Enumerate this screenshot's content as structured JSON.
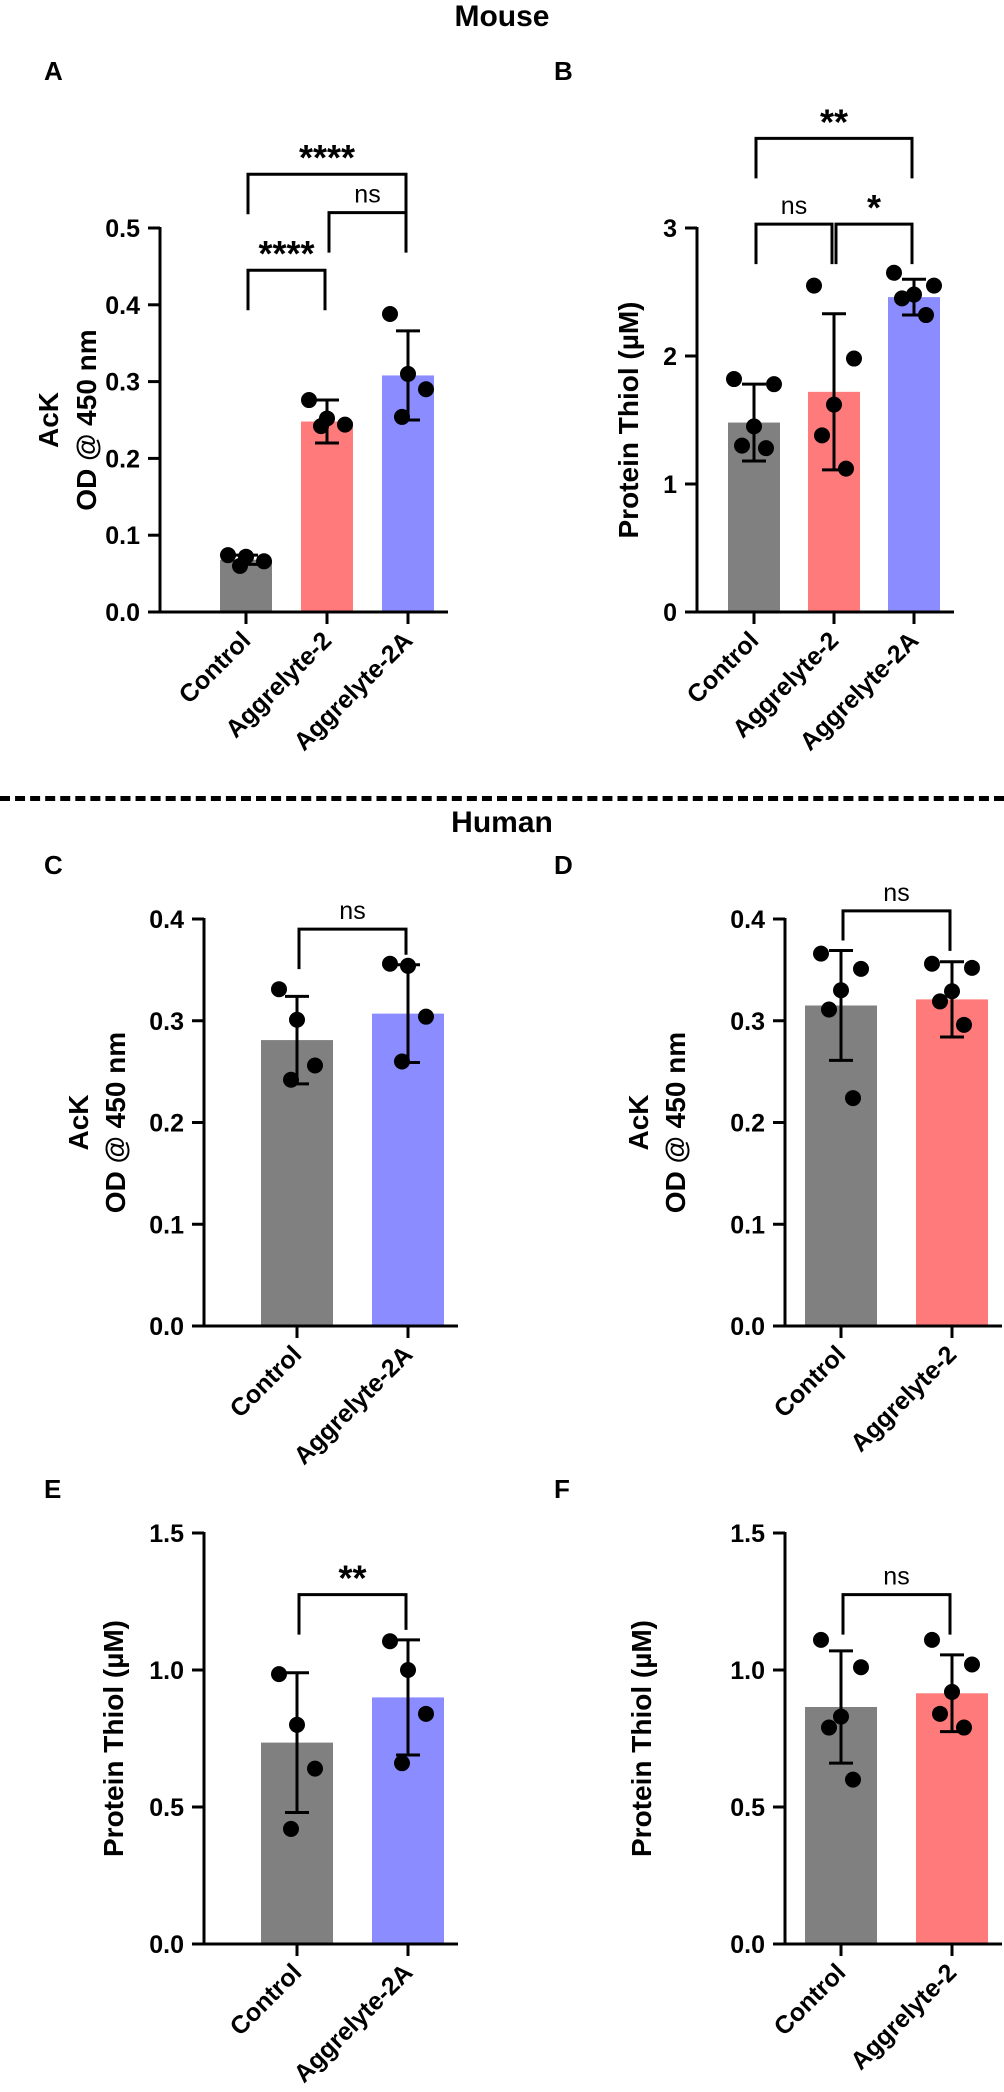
{
  "figure": {
    "sections": [
      {
        "id": "mouse",
        "title": "Mouse"
      },
      {
        "id": "human",
        "title": "Human"
      }
    ]
  },
  "colors": {
    "Control": "#808080",
    "Aggrelyte-2": "#FF7B7B",
    "Aggrelyte-2A": "#8A8CFF",
    "points": "#000000"
  },
  "chart_data": [
    {
      "panel": "A",
      "type": "bar",
      "ylabel": [
        "AcK",
        "OD @ 450 nm"
      ],
      "ylim": [
        0,
        0.5
      ],
      "yticks": [
        0.0,
        0.1,
        0.2,
        0.3,
        0.4,
        0.5
      ],
      "tick_labels": [
        "0.0",
        "0.1",
        "0.2",
        "0.3",
        "0.4",
        "0.5"
      ],
      "categories": [
        "Control",
        "Aggrelyte-2",
        "Aggrelyte-2A"
      ],
      "values": [
        0.068,
        0.248,
        0.308
      ],
      "sd": [
        0.006,
        0.028,
        0.058
      ],
      "points": [
        [
          0.074,
          0.072,
          0.066,
          0.06
        ],
        [
          0.276,
          0.252,
          0.244,
          0.242
        ],
        [
          0.388,
          0.31,
          0.29,
          0.254
        ]
      ],
      "comparisons": [
        {
          "a": 0,
          "b": 2,
          "label": "****",
          "level": 0.57
        },
        {
          "a": 1,
          "b": 2,
          "label": "ns",
          "level": 0.52
        },
        {
          "a": 0,
          "b": 1,
          "label": "****",
          "level": 0.445
        }
      ]
    },
    {
      "panel": "B",
      "type": "bar",
      "ylabel": [
        "Protein Thiol (µM)"
      ],
      "ylim": [
        0,
        3
      ],
      "yticks": [
        0,
        1,
        2,
        3
      ],
      "tick_labels": [
        "0",
        "1",
        "2",
        "3"
      ],
      "categories": [
        "Control",
        "Aggrelyte-2",
        "Aggrelyte-2A"
      ],
      "values": [
        1.48,
        1.72,
        2.46
      ],
      "sd": [
        0.3,
        0.61,
        0.14
      ],
      "points": [
        [
          1.82,
          1.78,
          1.45,
          1.3,
          1.28
        ],
        [
          2.55,
          1.98,
          1.62,
          1.38,
          1.12
        ],
        [
          2.65,
          2.55,
          2.48,
          2.45,
          2.32
        ]
      ],
      "comparisons": [
        {
          "a": 0,
          "b": 2,
          "label": "**",
          "level": 3.7
        },
        {
          "a": 0,
          "b": 1,
          "label": "ns",
          "level": 3.03
        },
        {
          "a": 1,
          "b": 2,
          "label": "*",
          "level": 3.03
        }
      ]
    },
    {
      "panel": "C",
      "type": "bar",
      "ylabel": [
        "AcK",
        "OD @ 450 nm"
      ],
      "ylim": [
        0,
        0.4
      ],
      "yticks": [
        0.0,
        0.1,
        0.2,
        0.3,
        0.4
      ],
      "tick_labels": [
        "0.0",
        "0.1",
        "0.2",
        "0.3",
        "0.4"
      ],
      "categories": [
        "Control",
        "Aggrelyte-2A"
      ],
      "values": [
        0.281,
        0.307
      ],
      "sd": [
        0.043,
        0.048
      ],
      "points": [
        [
          0.331,
          0.301,
          0.256,
          0.242
        ],
        [
          0.356,
          0.354,
          0.304,
          0.26
        ]
      ],
      "comparisons": [
        {
          "a": 0,
          "b": 1,
          "label": "ns",
          "level": 0.39
        }
      ]
    },
    {
      "panel": "D",
      "type": "bar",
      "ylabel": [
        "AcK",
        "OD @ 450 nm"
      ],
      "ylim": [
        0,
        0.4
      ],
      "yticks": [
        0.0,
        0.1,
        0.2,
        0.3,
        0.4
      ],
      "tick_labels": [
        "0.0",
        "0.1",
        "0.2",
        "0.3",
        "0.4"
      ],
      "categories": [
        "Control",
        "Aggrelyte-2"
      ],
      "values": [
        0.315,
        0.321
      ],
      "sd": [
        0.054,
        0.037
      ],
      "points": [
        [
          0.366,
          0.351,
          0.33,
          0.311,
          0.224
        ],
        [
          0.356,
          0.352,
          0.329,
          0.319,
          0.296
        ]
      ],
      "comparisons": [
        {
          "a": 0,
          "b": 1,
          "label": "ns",
          "level": 0.408
        }
      ]
    },
    {
      "panel": "E",
      "type": "bar",
      "ylabel": [
        "Protein Thiol (µM)"
      ],
      "ylim": [
        0,
        1.5
      ],
      "yticks": [
        0.0,
        0.5,
        1.0,
        1.5
      ],
      "tick_labels": [
        "0.0",
        "0.5",
        "1.0",
        "1.5"
      ],
      "categories": [
        "Control",
        "Aggrelyte-2A"
      ],
      "values": [
        0.735,
        0.9
      ],
      "sd": [
        0.255,
        0.21
      ],
      "points": [
        [
          0.985,
          0.8,
          0.64,
          0.42
        ],
        [
          1.105,
          1.0,
          0.84,
          0.66
        ]
      ],
      "comparisons": [
        {
          "a": 0,
          "b": 1,
          "label": "**",
          "level": 1.275
        }
      ]
    },
    {
      "panel": "F",
      "type": "bar",
      "ylabel": [
        "Protein Thiol (µM)"
      ],
      "ylim": [
        0,
        1.5
      ],
      "yticks": [
        0.0,
        0.5,
        1.0,
        1.5
      ],
      "tick_labels": [
        "0.0",
        "0.5",
        "1.0",
        "1.5"
      ],
      "categories": [
        "Control",
        "Aggrelyte-2"
      ],
      "values": [
        0.865,
        0.915
      ],
      "sd": [
        0.205,
        0.14
      ],
      "points": [
        [
          1.11,
          1.01,
          0.83,
          0.79,
          0.6
        ],
        [
          1.11,
          1.02,
          0.92,
          0.84,
          0.79
        ]
      ],
      "comparisons": [
        {
          "a": 0,
          "b": 1,
          "label": "ns",
          "level": 1.275
        }
      ]
    }
  ]
}
